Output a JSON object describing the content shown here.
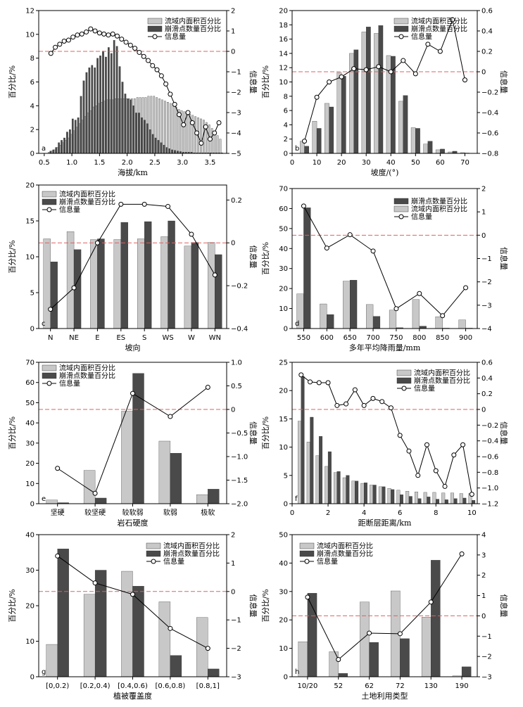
{
  "chart_data": [
    {
      "id": "a",
      "type": "bar",
      "panel_label": "a",
      "xlabel": "海拔/km",
      "ylabel": "百分比/%",
      "y2label": "信息量",
      "xlim": [
        0.4,
        3.8
      ],
      "ylim": [
        0,
        12
      ],
      "y2lim": [
        -5,
        2
      ],
      "xticks": [
        0.5,
        1.0,
        1.5,
        2.0,
        2.5,
        3.0,
        3.5
      ],
      "xtick_labels": [
        "0.5",
        "1.0",
        "1.5",
        "2.0",
        "2.5",
        "3.0",
        "3.5"
      ],
      "yticks": [
        0,
        2,
        4,
        6,
        8,
        10,
        12
      ],
      "y2ticks": [
        -5,
        -4,
        -3,
        -2,
        -1,
        0,
        1,
        2
      ],
      "bar_width": 0.03,
      "ref_y2": 0,
      "legend": [
        "流域内面积百分比",
        "崩滑点数量百分比",
        "信息量"
      ],
      "x": [
        0.6,
        0.65,
        0.7,
        0.75,
        0.8,
        0.85,
        0.9,
        0.95,
        1.0,
        1.05,
        1.1,
        1.15,
        1.2,
        1.25,
        1.3,
        1.35,
        1.4,
        1.45,
        1.5,
        1.55,
        1.6,
        1.65,
        1.7,
        1.75,
        1.8,
        1.85,
        1.9,
        1.95,
        2.0,
        2.05,
        2.1,
        2.15,
        2.2,
        2.25,
        2.3,
        2.35,
        2.4,
        2.45,
        2.5,
        2.55,
        2.6,
        2.65,
        2.7,
        2.75,
        2.8,
        2.85,
        2.9,
        2.95,
        3.0,
        3.05,
        3.1,
        3.15,
        3.2,
        3.25,
        3.3,
        3.35,
        3.4,
        3.45,
        3.5,
        3.55,
        3.6,
        3.65,
        3.7
      ],
      "series": [
        {
          "name": "流域内面积百分比",
          "color": "#c8c8c8",
          "values": [
            0.1,
            0.2,
            0.3,
            0.5,
            0.7,
            0.9,
            1.1,
            1.3,
            1.6,
            1.9,
            2.2,
            2.5,
            2.8,
            3.1,
            3.4,
            3.6,
            3.9,
            4.0,
            4.2,
            4.3,
            4.4,
            4.5,
            4.5,
            4.5,
            4.6,
            4.6,
            4.6,
            4.6,
            4.6,
            4.6,
            4.6,
            4.6,
            4.7,
            4.7,
            4.7,
            4.7,
            4.8,
            4.8,
            4.8,
            4.7,
            4.6,
            4.5,
            4.4,
            4.3,
            4.2,
            4.0,
            3.9,
            3.7,
            3.6,
            3.5,
            3.4,
            3.3,
            3.2,
            3.1,
            3.0,
            2.9,
            2.8,
            2.6,
            2.4,
            2.1,
            1.8,
            1.5,
            1.2
          ]
        },
        {
          "name": "崩滑点数量百分比",
          "color": "#4a4a4a",
          "values": [
            0.2,
            0.3,
            0.5,
            0.9,
            1.1,
            1.3,
            1.8,
            2.0,
            2.9,
            2.8,
            3.0,
            4.8,
            6.1,
            6.8,
            7.2,
            7.4,
            7.2,
            8.0,
            8.2,
            8.6,
            8.1,
            8.9,
            8.4,
            9.5,
            9.0,
            7.3,
            6.0,
            5.0,
            4.6,
            4.5,
            4.0,
            3.4,
            3.4,
            3.0,
            2.8,
            2.5,
            2.0,
            1.6,
            1.3,
            1.1,
            0.9,
            0.7,
            0.5,
            0.4,
            0.3,
            0.25,
            0.2,
            0.15,
            0.1,
            0.1,
            0.1,
            0.1,
            0.05,
            0.05,
            0.05,
            0.05,
            0.05,
            0.05,
            0.05,
            0.05,
            0.05,
            0.05,
            0.05
          ]
        },
        {
          "name": "信息量",
          "axis": "y2",
          "type": "line",
          "x": [
            0.62,
            0.7,
            0.78,
            0.86,
            0.94,
            1.02,
            1.1,
            1.18,
            1.26,
            1.34,
            1.42,
            1.5,
            1.58,
            1.66,
            1.74,
            1.82,
            1.9,
            1.98,
            2.06,
            2.14,
            2.22,
            2.3,
            2.38,
            2.46,
            2.54,
            2.62,
            2.7,
            2.78,
            2.86,
            2.94,
            3.02,
            3.1,
            3.18,
            3.26,
            3.34,
            3.42,
            3.5,
            3.58,
            3.66
          ],
          "values": [
            -0.1,
            0.2,
            0.35,
            0.5,
            0.55,
            0.7,
            0.8,
            0.85,
            0.95,
            1.1,
            1.0,
            0.9,
            0.85,
            0.8,
            0.85,
            0.75,
            0.6,
            0.45,
            0.3,
            0.15,
            -0.05,
            -0.25,
            -0.45,
            -0.7,
            -0.9,
            -1.2,
            -1.6,
            -2.1,
            -2.6,
            -3.1,
            -3.6,
            -3.0,
            -3.5,
            -4.0,
            -4.5,
            -3.7,
            -4.3,
            -4.0,
            -3.5
          ]
        }
      ]
    },
    {
      "id": "b",
      "type": "bar",
      "panel_label": "b",
      "xlabel": "坡度/(°)",
      "ylabel": "百分比/%",
      "y2label": "信息量",
      "xlim": [
        0,
        75
      ],
      "ylim": [
        0,
        20
      ],
      "y2lim": [
        -0.8,
        0.6
      ],
      "xticks": [
        0,
        10,
        20,
        30,
        40,
        50,
        60,
        70
      ],
      "xtick_labels": [
        "0",
        "10",
        "20",
        "30",
        "40",
        "50",
        "60",
        "70"
      ],
      "yticks": [
        0,
        2,
        4,
        6,
        8,
        10,
        12,
        14,
        16,
        18,
        20
      ],
      "y2ticks": [
        -0.8,
        -0.6,
        -0.4,
        -0.2,
        0,
        0.2,
        0.4,
        0.6
      ],
      "y2tick_labels": [
        "−0.8",
        "−0.6",
        "−0.4",
        "−0.2",
        "0",
        "0.2",
        "0.4",
        "0.6"
      ],
      "bar_width": 1.8,
      "ref_y2": 0,
      "legend": [
        "流域内面积百分比",
        "崩滑点数量百分比",
        "信息量"
      ],
      "x": [
        5,
        10,
        15,
        20,
        25,
        30,
        35,
        40,
        45,
        50,
        55,
        60,
        65,
        70
      ],
      "series": [
        {
          "name": "流域内面积百分比",
          "color": "#c8c8c8",
          "values": [
            1.7,
            4.5,
            7.0,
            11.3,
            14.0,
            17.0,
            16.8,
            13.7,
            7.3,
            3.6,
            1.3,
            0.5,
            0.2,
            0.1
          ]
        },
        {
          "name": "崩滑点数量百分比",
          "color": "#4a4a4a",
          "values": [
            1.0,
            3.5,
            6.5,
            10.8,
            14.5,
            17.7,
            17.9,
            13.6,
            8.1,
            3.5,
            1.7,
            0.6,
            0.3,
            0.05
          ]
        },
        {
          "name": "信息量",
          "axis": "y2",
          "type": "line",
          "x": [
            5,
            10,
            15,
            20,
            25,
            30,
            35,
            40,
            45,
            50,
            55,
            60,
            65,
            70
          ],
          "values": [
            -0.68,
            -0.25,
            -0.1,
            -0.05,
            0.03,
            0.02,
            0.05,
            0.0,
            0.11,
            -0.02,
            0.27,
            0.2,
            0.51,
            -0.08
          ]
        }
      ]
    },
    {
      "id": "c",
      "type": "bar",
      "panel_label": "c",
      "xlabel": "坡向",
      "ylabel": "百分比/%",
      "y2label": "信息量",
      "ylim": [
        0,
        20
      ],
      "y2lim": [
        -0.4,
        0.27
      ],
      "categories": [
        "N",
        "NE",
        "E",
        "ES",
        "S",
        "WS",
        "W",
        "WN"
      ],
      "yticks": [
        0,
        5,
        10,
        15,
        20
      ],
      "y2ticks": [
        -0.4,
        -0.2,
        0,
        0.2
      ],
      "y2tick_labels": [
        "−0.4",
        "−0.2",
        "0",
        "0.2"
      ],
      "ref_y2": 0,
      "legend": [
        "流域内面积百分比",
        "崩滑点数量百分比",
        "信息量"
      ],
      "series": [
        {
          "name": "流域内面积百分比",
          "color": "#c8c8c8",
          "values": [
            12.5,
            13.5,
            12.4,
            12.4,
            12.5,
            12.8,
            11.5,
            12.0
          ]
        },
        {
          "name": "崩滑点数量百分比",
          "color": "#4a4a4a",
          "values": [
            9.3,
            11.0,
            12.5,
            14.8,
            14.9,
            15.0,
            12.0,
            10.3
          ]
        },
        {
          "name": "信息量",
          "axis": "y2",
          "type": "line",
          "values": [
            -0.31,
            -0.21,
            0.0,
            0.18,
            0.18,
            0.17,
            0.04,
            -0.15
          ]
        }
      ]
    },
    {
      "id": "d",
      "type": "bar",
      "panel_label": "d",
      "xlabel": "多年平均降雨量/mm",
      "ylabel": "百分比/%",
      "y2label": "信息量",
      "ylim": [
        0,
        70
      ],
      "y2lim": [
        -4,
        2
      ],
      "categories": [
        "550",
        "600",
        "650",
        "700",
        "750",
        "800",
        "850",
        "900"
      ],
      "yticks": [
        0,
        10,
        20,
        30,
        40,
        50,
        60,
        70
      ],
      "y2ticks": [
        -4,
        -3,
        -2,
        -1,
        0,
        1,
        2
      ],
      "y2tick_labels": [
        "−4",
        "−3",
        "−2",
        "−1",
        "0",
        "1",
        "2"
      ],
      "ref_y2": 0,
      "legend": [
        "崩滑点数量百分比",
        "流域内面积百分比",
        "信息量"
      ],
      "series": [
        {
          "name": "流域内面积百分比",
          "color": "#c8c8c8",
          "values": [
            17.3,
            12.3,
            23.7,
            12.0,
            9.2,
            14.5,
            5.9,
            4.3
          ]
        },
        {
          "name": "崩滑点数量百分比",
          "color": "#4a4a4a",
          "values": [
            60.4,
            7.0,
            24.2,
            6.1,
            0.4,
            1.2,
            0.2,
            0.2
          ]
        },
        {
          "name": "信息量",
          "axis": "y2",
          "type": "line",
          "values": [
            1.25,
            -0.55,
            0.02,
            -0.68,
            -3.15,
            -2.5,
            -3.45,
            -2.25
          ]
        }
      ]
    },
    {
      "id": "e",
      "type": "bar",
      "panel_label": "e",
      "xlabel": "岩石硬度",
      "ylabel": "百分比/%",
      "y2label": "信息量",
      "ylim": [
        0,
        70
      ],
      "y2lim": [
        -2.0,
        1.0
      ],
      "categories": [
        "坚硬",
        "较坚硬",
        "较软弱",
        "软弱",
        "极软"
      ],
      "yticks": [
        0,
        10,
        20,
        30,
        40,
        50,
        60,
        70
      ],
      "y2ticks": [
        -2.0,
        -1.5,
        -1.0,
        -0.5,
        0,
        0.5,
        1.0
      ],
      "y2tick_labels": [
        "−2.0",
        "−1.5",
        "−1.0",
        "−0.5",
        "0",
        "0.5",
        "1.0"
      ],
      "ref_y2": 0,
      "legend": [
        "流域内面积百分比",
        "崩滑点数量百分比",
        "信息量"
      ],
      "series": [
        {
          "name": "流域内面积百分比",
          "color": "#c8c8c8",
          "values": [
            1.8,
            16.5,
            45.8,
            31.0,
            4.5
          ]
        },
        {
          "name": "崩滑点数量百分比",
          "color": "#4a4a4a",
          "values": [
            0.5,
            2.8,
            64.5,
            25.0,
            7.2
          ]
        },
        {
          "name": "信息量",
          "axis": "y2",
          "type": "line",
          "values": [
            -1.25,
            -1.78,
            0.34,
            -0.15,
            0.47
          ]
        }
      ]
    },
    {
      "id": "f",
      "type": "bar",
      "panel_label": "f",
      "xlabel": "距断层距离/km",
      "ylabel": "百分比/%",
      "y2label": "信息量",
      "xlim": [
        0,
        10.3
      ],
      "ylim": [
        0,
        25
      ],
      "y2lim": [
        -1.2,
        0.6
      ],
      "xticks": [
        0,
        2,
        4,
        6,
        8,
        10
      ],
      "xtick_labels": [
        "0",
        "2",
        "4",
        "6",
        "8",
        "10"
      ],
      "yticks": [
        0,
        5,
        10,
        15,
        20,
        25
      ],
      "y2ticks": [
        -1.2,
        -1.0,
        -0.8,
        -0.6,
        -0.4,
        -0.2,
        0,
        0.2,
        0.4,
        0.6
      ],
      "y2tick_labels": [
        "−1.2",
        "−1.0",
        "−0.8",
        "−0.6",
        "−0.4",
        "−0.2",
        "0",
        "0.2",
        "0.4",
        "0.6"
      ],
      "bar_width": 0.18,
      "ref_y2": 0,
      "legend": [
        "流域内面积百分比",
        "崩滑点数量百分比",
        "信息量"
      ],
      "x": [
        0.5,
        1.0,
        1.5,
        2.0,
        2.5,
        3.0,
        3.5,
        4.0,
        4.5,
        5.0,
        5.5,
        6.0,
        6.5,
        7.0,
        7.5,
        8.0,
        8.5,
        9.0,
        9.5,
        10.0
      ],
      "series": [
        {
          "name": "流域内面积百分比",
          "color": "#c8c8c8",
          "values": [
            14.6,
            10.9,
            8.5,
            6.6,
            5.5,
            4.6,
            4.0,
            3.6,
            3.3,
            3.0,
            2.7,
            2.4,
            2.2,
            2.1,
            2.0,
            2.0,
            1.9,
            1.9,
            1.8,
            1.8
          ]
        },
        {
          "name": "崩滑点数量百分比",
          "color": "#4a4a4a",
          "values": [
            22.5,
            15.3,
            11.9,
            9.2,
            5.7,
            5.0,
            4.0,
            3.7,
            3.3,
            3.0,
            2.5,
            1.6,
            1.3,
            0.9,
            1.2,
            0.8,
            0.7,
            0.9,
            1.0,
            0.6
          ]
        },
        {
          "name": "信息量",
          "axis": "y2",
          "type": "line",
          "x": [
            0.5,
            1.0,
            1.5,
            2.0,
            2.5,
            3.0,
            3.5,
            4.0,
            4.5,
            5.0,
            5.5,
            6.0,
            6.5,
            7.0,
            7.5,
            8.0,
            8.5,
            9.0,
            9.5,
            10.0
          ],
          "values": [
            0.44,
            0.35,
            0.34,
            0.34,
            0.05,
            0.07,
            0.25,
            0.05,
            0.14,
            0.1,
            0.02,
            -0.33,
            -0.53,
            -0.84,
            -0.45,
            -0.78,
            -0.98,
            -0.58,
            -0.45,
            -1.08
          ]
        }
      ]
    },
    {
      "id": "g",
      "type": "bar",
      "panel_label": "g",
      "xlabel": "植被覆盖度",
      "ylabel": "百分比/%",
      "y2label": "信息量",
      "ylim": [
        0,
        40
      ],
      "y2lim": [
        -3,
        2
      ],
      "categories": [
        "[0,0.2)",
        "[0.2,0.4)",
        "[0.4,0.6)",
        "[0.6,0.8)",
        "[0.8,1]"
      ],
      "yticks": [
        0,
        10,
        20,
        30,
        40
      ],
      "y2ticks": [
        -3,
        -2,
        -1,
        0,
        1,
        2
      ],
      "y2tick_labels": [
        "−3",
        "−2",
        "−1",
        "0",
        "1",
        "2"
      ],
      "ref_y2": 0,
      "legend": [
        "流域内面积百分比",
        "崩滑点数量百分比",
        "信息量"
      ],
      "series": [
        {
          "name": "流域内面积百分比",
          "color": "#c8c8c8",
          "values": [
            9.1,
            23.2,
            29.7,
            21.1,
            16.7
          ]
        },
        {
          "name": "崩滑点数量百分比",
          "color": "#4a4a4a",
          "values": [
            36.0,
            30.0,
            25.5,
            6.0,
            2.2
          ]
        },
        {
          "name": "信息量",
          "axis": "y2",
          "type": "line",
          "values": [
            1.25,
            0.3,
            -0.1,
            -1.3,
            -2.0
          ]
        }
      ]
    },
    {
      "id": "h",
      "type": "bar",
      "panel_label": "h",
      "xlabel": "土地利用类型",
      "ylabel": "百分比/%",
      "y2label": "信息量",
      "ylim": [
        0,
        50
      ],
      "y2lim": [
        -3,
        4
      ],
      "categories": [
        "10/20",
        "52",
        "62",
        "72",
        "130",
        "190"
      ],
      "yticks": [
        0,
        10,
        20,
        30,
        40,
        50
      ],
      "y2ticks": [
        -3,
        -2,
        -1,
        0,
        1,
        2,
        3,
        4
      ],
      "y2tick_labels": [
        "−3",
        "−2",
        "−1",
        "0",
        "1",
        "2",
        "3",
        "4"
      ],
      "ref_y2": 0,
      "legend": [
        "流域内面积百分比",
        "崩滑点数量百分比",
        "信息量"
      ],
      "series": [
        {
          "name": "流域内面积百分比",
          "color": "#c8c8c8",
          "values": [
            12.3,
            8.8,
            26.3,
            30.2,
            21.0,
            0.3
          ]
        },
        {
          "name": "崩滑点数量百分比",
          "color": "#4a4a4a",
          "values": [
            29.4,
            1.2,
            12.1,
            13.4,
            41.0,
            3.5
          ]
        },
        {
          "name": "信息量",
          "axis": "y2",
          "type": "line",
          "values": [
            0.92,
            -2.15,
            -0.85,
            -0.88,
            0.68,
            3.05
          ]
        }
      ]
    }
  ]
}
